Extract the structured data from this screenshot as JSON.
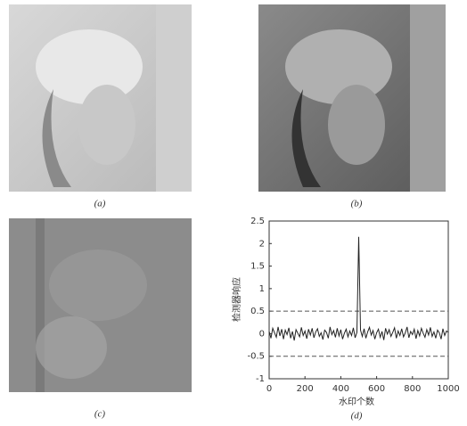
{
  "captions": [
    "(a)",
    "(b)",
    "(c)",
    "(d)"
  ],
  "chart_data": {
    "type": "line",
    "xlabel": "水印个数",
    "ylabel": "检测器响应",
    "x": [
      0,
      10,
      20,
      30,
      40,
      50,
      60,
      70,
      80,
      90,
      100,
      110,
      120,
      130,
      140,
      150,
      160,
      170,
      180,
      190,
      200,
      210,
      220,
      230,
      240,
      250,
      260,
      270,
      280,
      290,
      300,
      310,
      320,
      330,
      340,
      350,
      360,
      370,
      380,
      390,
      400,
      410,
      420,
      430,
      440,
      450,
      460,
      470,
      480,
      490,
      500,
      510,
      520,
      530,
      540,
      550,
      560,
      570,
      580,
      590,
      600,
      610,
      620,
      630,
      640,
      650,
      660,
      670,
      680,
      690,
      700,
      710,
      720,
      730,
      740,
      750,
      760,
      770,
      780,
      790,
      800,
      810,
      820,
      830,
      840,
      850,
      860,
      870,
      880,
      890,
      900,
      910,
      920,
      930,
      940,
      950,
      960,
      970,
      980,
      990,
      1000
    ],
    "series": [
      {
        "color": "#222222",
        "values": [
          0.05,
          -0.1,
          0.12,
          0.02,
          -0.08,
          0.15,
          -0.05,
          0.1,
          -0.12,
          0.08,
          -0.02,
          0.13,
          -0.1,
          0.05,
          -0.15,
          0.09,
          0.01,
          -0.07,
          0.14,
          -0.04,
          0.06,
          -0.11,
          0.1,
          -0.03,
          0.12,
          -0.09,
          0.04,
          0.11,
          -0.06,
          0.02,
          -0.13,
          0.08,
          0.03,
          -0.1,
          0.15,
          -0.02,
          0.07,
          -0.08,
          0.12,
          -0.05,
          0.09,
          -0.12,
          0.01,
          0.1,
          -0.07,
          0.06,
          -0.04,
          0.13,
          -0.09,
          0.03,
          2.15,
          0.08,
          -0.06,
          0.11,
          -0.1,
          0.04,
          0.14,
          -0.03,
          0.07,
          -0.12,
          0.02,
          0.1,
          -0.08,
          0.05,
          -0.14,
          0.12,
          -0.01,
          0.09,
          -0.06,
          0.03,
          0.13,
          -0.1,
          0.06,
          -0.04,
          0.11,
          -0.07,
          0.02,
          0.15,
          -0.09,
          0.05,
          -0.02,
          0.1,
          -0.11,
          0.07,
          -0.05,
          0.12,
          0.01,
          -0.08,
          0.09,
          -0.03,
          0.14,
          -0.06,
          0.04,
          -0.1,
          0.08,
          0.02,
          -0.12,
          0.11,
          -0.04,
          0.06,
          0.03
        ]
      }
    ],
    "hlines": [
      0.5,
      -0.5
    ],
    "xlim": [
      0,
      1000
    ],
    "xticks": [
      0,
      200,
      400,
      600,
      800,
      1000
    ],
    "ylim": [
      -1,
      2.5
    ],
    "yticks": [
      -1,
      -0.5,
      0,
      0.5,
      1,
      1.5,
      2,
      2.5
    ],
    "grid": false
  }
}
